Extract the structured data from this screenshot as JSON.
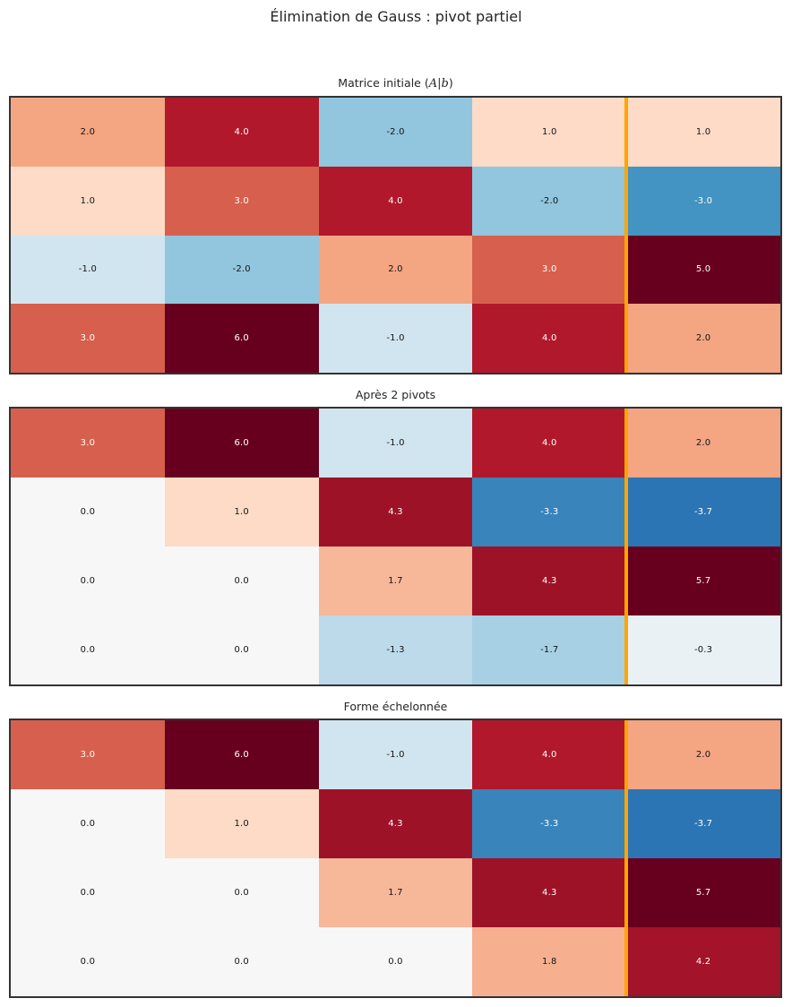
{
  "figure_title": "Élimination de Gauss : pivot partiel",
  "colors": {
    "background": "#ffffff",
    "panel_border": "#333333",
    "augmented_line": "#ffa500",
    "title_text": "#262626",
    "annotation_dark": "#141414",
    "annotation_light": "#ffffff"
  },
  "chart_data": [
    {
      "type": "heatmap",
      "title": "Matrice initiale (A|b)",
      "title_prefix": "Matrice initiale (",
      "title_math": "A|b",
      "title_suffix": ")",
      "colormap": "RdBu_r",
      "grid": {
        "rows": 4,
        "cols": 5
      },
      "augmented_col_index": 4,
      "values": [
        [
          2.0,
          4.0,
          -2.0,
          1.0,
          1.0
        ],
        [
          1.0,
          3.0,
          4.0,
          -2.0,
          -3.0
        ],
        [
          -1.0,
          -2.0,
          2.0,
          3.0,
          5.0
        ],
        [
          3.0,
          6.0,
          -1.0,
          4.0,
          2.0
        ]
      ],
      "labels": [
        [
          "2.0",
          "4.0",
          "-2.0",
          "1.0",
          "1.0"
        ],
        [
          "1.0",
          "3.0",
          "4.0",
          "-2.0",
          "-3.0"
        ],
        [
          "-1.0",
          "-2.0",
          "2.0",
          "3.0",
          "5.0"
        ],
        [
          "3.0",
          "6.0",
          "-1.0",
          "4.0",
          "2.0"
        ]
      ],
      "cell_colors": [
        [
          "#f4a582",
          "#b2182b",
          "#92c5de",
          "#fddbc7",
          "#fddbc7"
        ],
        [
          "#fddbc7",
          "#d6604d",
          "#b2182b",
          "#92c5de",
          "#4393c3"
        ],
        [
          "#d1e5f0",
          "#92c5de",
          "#f4a582",
          "#d6604d",
          "#67001f"
        ],
        [
          "#d6604d",
          "#67001f",
          "#d1e5f0",
          "#b2182b",
          "#f4a582"
        ]
      ]
    },
    {
      "type": "heatmap",
      "title": "Après 2 pivots",
      "title_prefix": "Après 2 pivots",
      "title_math": "",
      "title_suffix": "",
      "colormap": "RdBu_r",
      "grid": {
        "rows": 4,
        "cols": 5
      },
      "augmented_col_index": 4,
      "values": [
        [
          3.0,
          6.0,
          -1.0,
          4.0,
          2.0
        ],
        [
          0.0,
          1.0,
          4.33,
          -3.33,
          -3.67
        ],
        [
          0.0,
          0.0,
          1.67,
          4.33,
          5.67
        ],
        [
          0.0,
          0.0,
          -1.33,
          -1.67,
          -0.33
        ]
      ],
      "labels": [
        [
          "3.0",
          "6.0",
          "-1.0",
          "4.0",
          "2.0"
        ],
        [
          "0.0",
          "1.0",
          "4.3",
          "-3.3",
          "-3.7"
        ],
        [
          "0.0",
          "0.0",
          "1.7",
          "4.3",
          "5.7"
        ],
        [
          "0.0",
          "0.0",
          "-1.3",
          "-1.7",
          "-0.3"
        ]
      ],
      "cell_colors": [
        [
          "#d6604d",
          "#67001f",
          "#d1e5f0",
          "#b2182b",
          "#f4a582"
        ],
        [
          "#f7f7f7",
          "#fddbc7",
          "#9e1228",
          "#3884bb",
          "#2c75b4"
        ],
        [
          "#f7f7f7",
          "#f7f7f7",
          "#f7b799",
          "#9e1228",
          "#67001f"
        ],
        [
          "#f7f7f7",
          "#f7f7f7",
          "#bcdaea",
          "#a7d0e4",
          "#eaf1f5"
        ]
      ]
    },
    {
      "type": "heatmap",
      "title": "Forme échelonnée",
      "title_prefix": "Forme échelonnée",
      "title_math": "",
      "title_suffix": "",
      "colormap": "RdBu_r",
      "grid": {
        "rows": 4,
        "cols": 5
      },
      "augmented_col_index": 4,
      "values": [
        [
          3.0,
          6.0,
          -1.0,
          4.0,
          2.0
        ],
        [
          0.0,
          1.0,
          4.33,
          -3.33,
          -3.67
        ],
        [
          0.0,
          0.0,
          1.67,
          4.33,
          5.67
        ],
        [
          0.0,
          0.0,
          0.0,
          1.8,
          4.2
        ]
      ],
      "labels": [
        [
          "3.0",
          "6.0",
          "-1.0",
          "4.0",
          "2.0"
        ],
        [
          "0.0",
          "1.0",
          "4.3",
          "-3.3",
          "-3.7"
        ],
        [
          "0.0",
          "0.0",
          "1.7",
          "4.3",
          "5.7"
        ],
        [
          "0.0",
          "0.0",
          "0.0",
          "1.8",
          "4.2"
        ]
      ],
      "cell_colors": [
        [
          "#d6604d",
          "#67001f",
          "#d1e5f0",
          "#b2182b",
          "#f4a582"
        ],
        [
          "#f7f7f7",
          "#fddbc7",
          "#9e1228",
          "#3884bb",
          "#2c75b4"
        ],
        [
          "#f7f7f7",
          "#f7f7f7",
          "#f7b799",
          "#9e1228",
          "#67001f"
        ],
        [
          "#f7f7f7",
          "#f7f7f7",
          "#f7f7f7",
          "#f6b090",
          "#a31329"
        ]
      ]
    }
  ]
}
